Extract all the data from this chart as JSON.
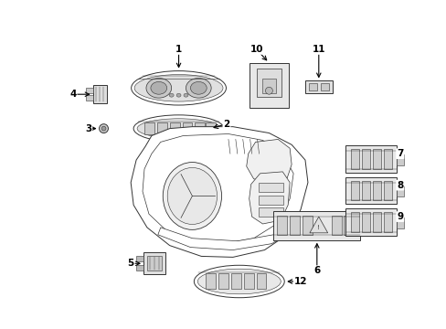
{
  "background_color": "#ffffff",
  "fig_width": 4.89,
  "fig_height": 3.6,
  "dpi": 100,
  "line_color": "#333333",
  "lw": 0.7
}
